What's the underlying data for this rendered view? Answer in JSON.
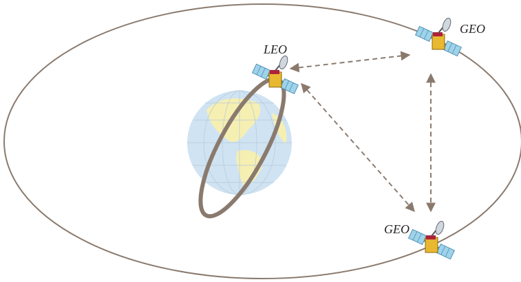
{
  "nodes": [
    {
      "label": "LEO"
    },
    {
      "label": "GEO"
    },
    {
      "label": "GEO"
    }
  ]
}
